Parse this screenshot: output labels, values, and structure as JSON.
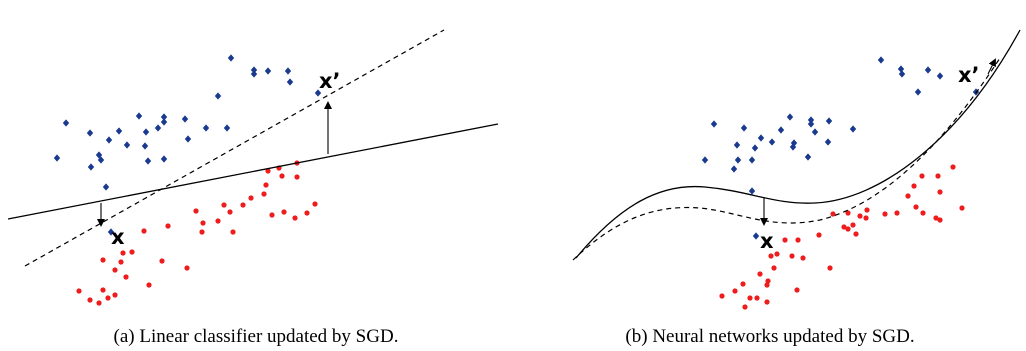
{
  "panels": [
    {
      "caption": "(a) Linear classifier updated by SGD.",
      "label_x": "x",
      "label_xprime": "x’"
    },
    {
      "caption": "(b) Neural networks updated by SGD.",
      "label_x": "x",
      "label_xprime": "x’"
    }
  ],
  "colors": {
    "class_diamond": "#1a3a8f",
    "class_dot": "#ee1c1c",
    "boundary": "#000000"
  }
}
